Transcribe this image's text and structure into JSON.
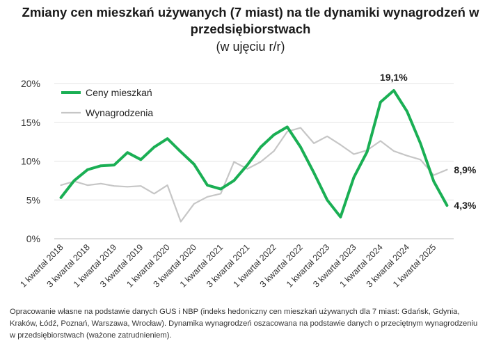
{
  "chart_data": {
    "type": "line",
    "title": "Zmiany cen mieszkań używanych (7 miast) na tle dynamiki wynagrodzeń w przedsiębiorstwach",
    "subtitle": "(w ujęciu r/r)",
    "xlabel": "",
    "ylabel": "",
    "ylim": [
      0,
      20
    ],
    "y_ticks": [
      "0%",
      "5%",
      "10%",
      "15%",
      "20%"
    ],
    "grid": true,
    "legend_position": "top-left",
    "x": [
      "1 kwartał 2018",
      "2 kwartał 2018",
      "3 kwartał 2018",
      "4 kwartał 2018",
      "1 kwartał 2019",
      "2 kwartał 2019",
      "3 kwartał 2019",
      "4 kwartał 2019",
      "1 kwartał 2020",
      "2 kwartał 2020",
      "3 kwartał 2020",
      "4 kwartał 2020",
      "1 kwartał 2021",
      "2 kwartał 2021",
      "3 kwartał 2021",
      "4 kwartał 2021",
      "1 kwartał 2022",
      "2 kwartał 2022",
      "3 kwartał 2022",
      "4 kwartał 2022",
      "1 kwartał 2023",
      "2 kwartał 2023",
      "3 kwartał 2023",
      "4 kwartał 2023",
      "1 kwartał 2024",
      "2 kwartał 2024",
      "3 kwartał 2024",
      "4 kwartał 2024",
      "1 kwartał 2025",
      "2 kwartał 2025"
    ],
    "x_tick_labels": [
      "1 kwartał 2018",
      "3 kwartał 2018",
      "1 kwartał 2019",
      "3 kwartał 2019",
      "1 kwartał 2020",
      "3 kwartał 2020",
      "1 kwartał 2021",
      "3 kwartał 2021",
      "1 kwartał 2022",
      "3 kwartał 2022",
      "1 kwartał 2023",
      "3 kwartał 2023",
      "1 kwartał 2024",
      "3 kwartał 2024",
      "1 kwartał 2025"
    ],
    "series": [
      {
        "name": "Ceny mieszkań",
        "color": "#1aaf54",
        "values": [
          5.3,
          7.5,
          8.9,
          9.4,
          9.5,
          11.1,
          10.2,
          11.8,
          12.9,
          11.2,
          9.6,
          6.9,
          6.4,
          7.5,
          9.5,
          11.8,
          13.4,
          14.4,
          11.8,
          8.5,
          5.0,
          2.8,
          7.9,
          11.2,
          17.6,
          19.1,
          16.4,
          12.3,
          7.4,
          4.3
        ]
      },
      {
        "name": "Wynagrodzenia",
        "color": "#c6c6c6",
        "values": [
          6.9,
          7.4,
          6.9,
          7.1,
          6.8,
          6.7,
          6.8,
          5.8,
          6.9,
          2.2,
          4.5,
          5.4,
          5.8,
          9.9,
          9.0,
          9.9,
          11.3,
          13.8,
          14.3,
          12.3,
          13.2,
          12.1,
          10.9,
          11.4,
          12.6,
          11.3,
          10.7,
          10.2,
          8.2,
          8.9
        ]
      }
    ],
    "annotations": [
      {
        "text": "19,1%",
        "series": 0,
        "index": 25,
        "position": "above"
      },
      {
        "text": "4,3%",
        "series": 0,
        "index": 29,
        "position": "right"
      },
      {
        "text": "8,9%",
        "series": 1,
        "index": 29,
        "position": "right"
      }
    ]
  },
  "footnote": "Opracowanie własne na podstawie danych GUS i NBP (indeks hedoniczny cen mieszkań używanych dla 7 miast: Gdańsk, Gdynia, Kraków, Łódź, Poznań, Warszawa, Wrocław). Dynamika wynagrodzeń oszacowana na podstawie danych o przeciętnym wynagrodzeniu w przedsiębiorstwach (ważone zatrudnieniem)."
}
